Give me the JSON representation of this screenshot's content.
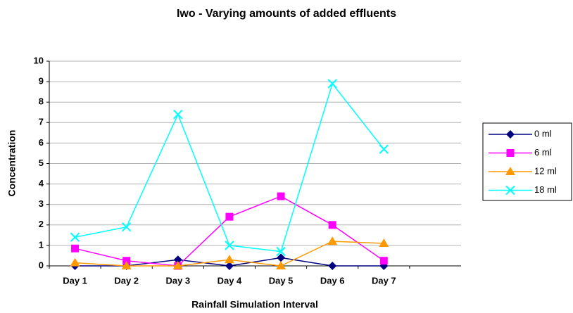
{
  "chart_data": {
    "type": "line",
    "title": "Iwo - Varying amounts of added effluents",
    "x_label": "Rainfall Simulation Interval",
    "y_label": "Concentration",
    "categories": [
      "Day 1",
      "Day 2",
      "Day 3",
      "Day 4",
      "Day 5",
      "Day 6",
      "Day 7",
      null
    ],
    "series": [
      {
        "name": "0 ml",
        "color": "#000080",
        "marker": "diamond",
        "values": [
          0,
          0,
          0.3,
          0,
          0.4,
          0,
          0,
          null
        ]
      },
      {
        "name": "6 ml",
        "color": "#ff00ff",
        "marker": "square",
        "values": [
          0.85,
          0.25,
          0,
          2.4,
          3.4,
          2.0,
          0.25,
          null
        ]
      },
      {
        "name": "12 ml",
        "color": "#ff9900",
        "marker": "triangle",
        "values": [
          0.15,
          0,
          0,
          0.3,
          0,
          1.2,
          1.1,
          null
        ]
      },
      {
        "name": "18 ml",
        "color": "#00ffff",
        "marker": "x",
        "values": [
          1.4,
          1.9,
          7.4,
          1.0,
          0.7,
          8.9,
          5.7,
          null
        ]
      }
    ],
    "ylim": [
      0,
      10
    ],
    "yticks": [
      0,
      1,
      2,
      3,
      4,
      5,
      6,
      7,
      8,
      9,
      10
    ],
    "grid": true,
    "legend": "right"
  }
}
